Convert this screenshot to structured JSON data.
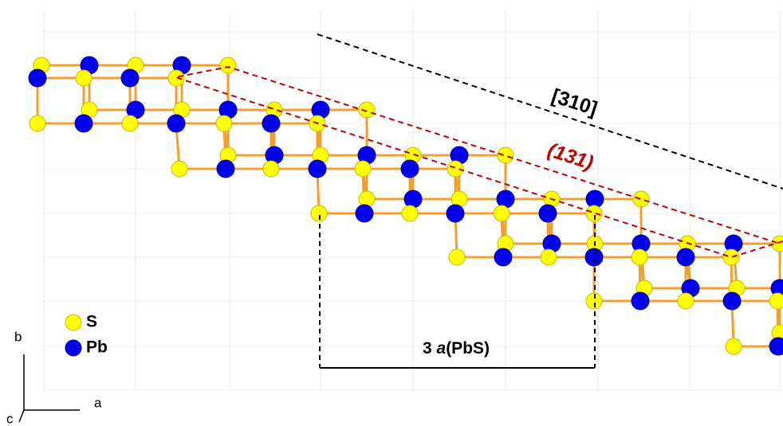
{
  "labels": {
    "direction": "[310]",
    "plane": "(131)",
    "period": {
      "prefix": "3",
      "italic": "a",
      "suffix": "(PbS)"
    }
  },
  "legend": {
    "items": [
      "S",
      "Pb"
    ]
  },
  "axes": {
    "b": "b",
    "a": "a",
    "c": "c"
  }
}
